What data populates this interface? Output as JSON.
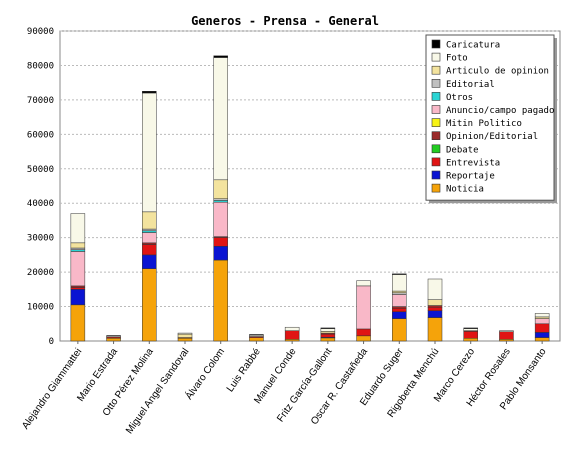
{
  "chart_data": {
    "type": "bar",
    "stacked": true,
    "title": "Generos - Prensa - General",
    "xlabel": "",
    "ylabel": "",
    "ylim": [
      0,
      90000
    ],
    "yticks": [
      0,
      10000,
      20000,
      30000,
      40000,
      50000,
      60000,
      70000,
      80000,
      90000
    ],
    "grid": true,
    "legend_position": "top-right",
    "categories": [
      "Alejandro Giammattei",
      "Mario Estrada",
      "Otto Pérez Molina",
      "Miguel Angel Sandoval",
      "Álvaro Colom",
      "Luis Rabbé",
      "Manuel Conde",
      "Fritz García-Gallont",
      "Oscar R. Castañeda",
      "Eduardo Suger",
      "Rigoberta Menchú",
      "Marco Cerezo",
      "Héctor Rosales",
      "Pablo Monsanto"
    ],
    "series": [
      {
        "name": "Noticia",
        "color": "#f5a30a",
        "values": [
          10500,
          800,
          21000,
          800,
          23500,
          1000,
          500,
          900,
          1500,
          6500,
          6800,
          800,
          500,
          1000
        ]
      },
      {
        "name": "Reportaje",
        "color": "#0a14d2",
        "values": [
          4500,
          0,
          4000,
          0,
          4000,
          0,
          0,
          200,
          0,
          2000,
          2000,
          0,
          0,
          1500
        ]
      },
      {
        "name": "Entrevista",
        "color": "#e01414",
        "values": [
          500,
          300,
          3000,
          200,
          2500,
          300,
          2500,
          900,
          2000,
          1000,
          1000,
          2000,
          2200,
          2500
        ]
      },
      {
        "name": "Debate",
        "color": "#22cc22",
        "values": [
          0,
          0,
          0,
          0,
          0,
          0,
          0,
          0,
          0,
          0,
          0,
          0,
          0,
          0
        ]
      },
      {
        "name": "Opinion/Editorial",
        "color": "#9a2a2a",
        "values": [
          500,
          0,
          500,
          0,
          300,
          0,
          0,
          300,
          0,
          500,
          500,
          200,
          0,
          0
        ]
      },
      {
        "name": "Mitin Politico",
        "color": "#f7f314",
        "values": [
          0,
          0,
          0,
          0,
          0,
          0,
          0,
          0,
          0,
          0,
          0,
          0,
          0,
          0
        ]
      },
      {
        "name": "Anuncio/campo pagado",
        "color": "#f9b8c8",
        "values": [
          10000,
          0,
          3000,
          0,
          10000,
          0,
          0,
          0,
          12500,
          3500,
          0,
          0,
          0,
          1500
        ]
      },
      {
        "name": "Otros",
        "color": "#2ad4d4",
        "values": [
          500,
          0,
          500,
          0,
          500,
          0,
          0,
          0,
          0,
          0,
          0,
          0,
          0,
          0
        ]
      },
      {
        "name": "Editorial",
        "color": "#c0c0c0",
        "values": [
          500,
          0,
          500,
          0,
          500,
          0,
          0,
          0,
          0,
          500,
          0,
          0,
          0,
          0
        ]
      },
      {
        "name": "Articulo de opinion",
        "color": "#f3e39e",
        "values": [
          1500,
          0,
          5000,
          1000,
          5500,
          0,
          0,
          500,
          0,
          500,
          1700,
          0,
          0,
          500
        ]
      },
      {
        "name": "Foto",
        "color": "#f8f8e8",
        "values": [
          8500,
          300,
          34500,
          300,
          35500,
          400,
          1000,
          800,
          1500,
          4800,
          6000,
          600,
          300,
          1000
        ]
      },
      {
        "name": "Caricatura",
        "color": "#000000",
        "values": [
          0,
          200,
          500,
          0,
          500,
          200,
          0,
          200,
          0,
          200,
          0,
          200,
          0,
          0
        ]
      }
    ]
  }
}
